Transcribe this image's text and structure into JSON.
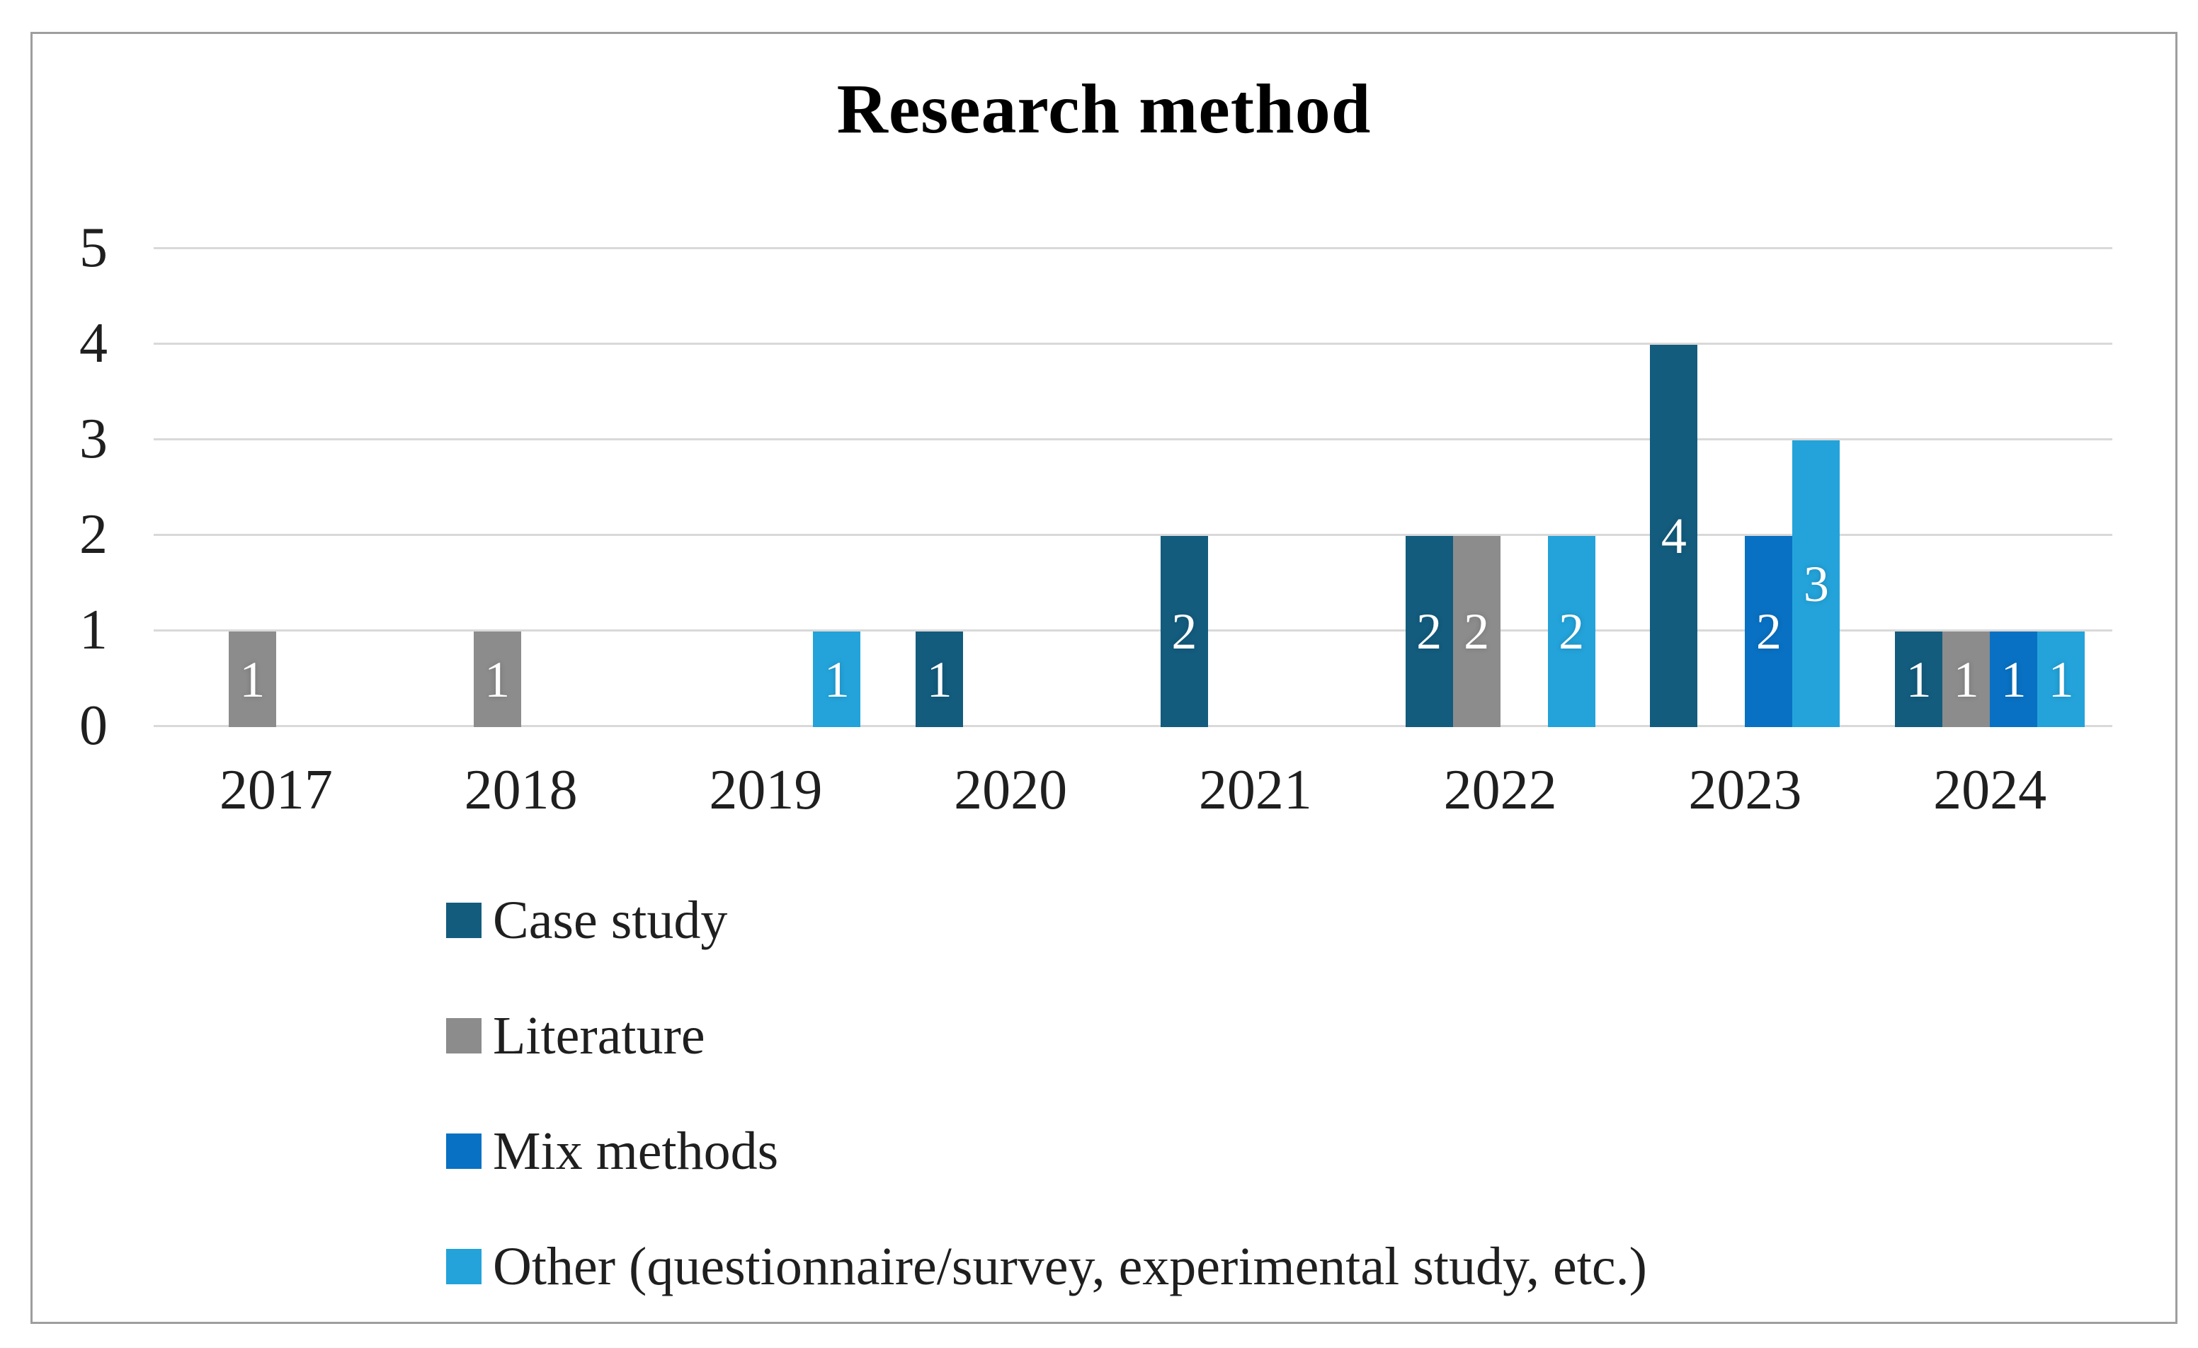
{
  "chart_data": {
    "type": "bar",
    "title": "Research method",
    "categories": [
      "2017",
      "2018",
      "2019",
      "2020",
      "2021",
      "2022",
      "2023",
      "2024"
    ],
    "series": [
      {
        "name": "Case study",
        "color": "#135c7e",
        "values": [
          0,
          0,
          0,
          1,
          2,
          2,
          4,
          1
        ]
      },
      {
        "name": "Literature",
        "color": "#8c8c8c",
        "values": [
          1,
          1,
          0,
          0,
          0,
          2,
          0,
          1
        ]
      },
      {
        "name": "Mix methods",
        "color": "#0971c3",
        "values": [
          0,
          0,
          0,
          0,
          0,
          0,
          2,
          1
        ]
      },
      {
        "name": "Other (questionnaire/survey, experimental study, etc.)",
        "color": "#23a3da",
        "values": [
          0,
          0,
          1,
          0,
          0,
          2,
          3,
          1
        ]
      }
    ],
    "yticks": [
      0,
      1,
      2,
      3,
      4,
      5
    ],
    "ylim": [
      0,
      5
    ],
    "xlabel": "",
    "ylabel": "",
    "grid": true,
    "data_labels": "value shown in white, centered inside each nonzero bar",
    "legend_position": "bottom-left"
  },
  "colors": {
    "background": "#ffffff",
    "frame_border": "#9e9e9e",
    "gridline": "#d9d9d9",
    "title_text": "#000000",
    "axis_text": "#1f1f1f",
    "data_label_text": "#ffffff"
  }
}
